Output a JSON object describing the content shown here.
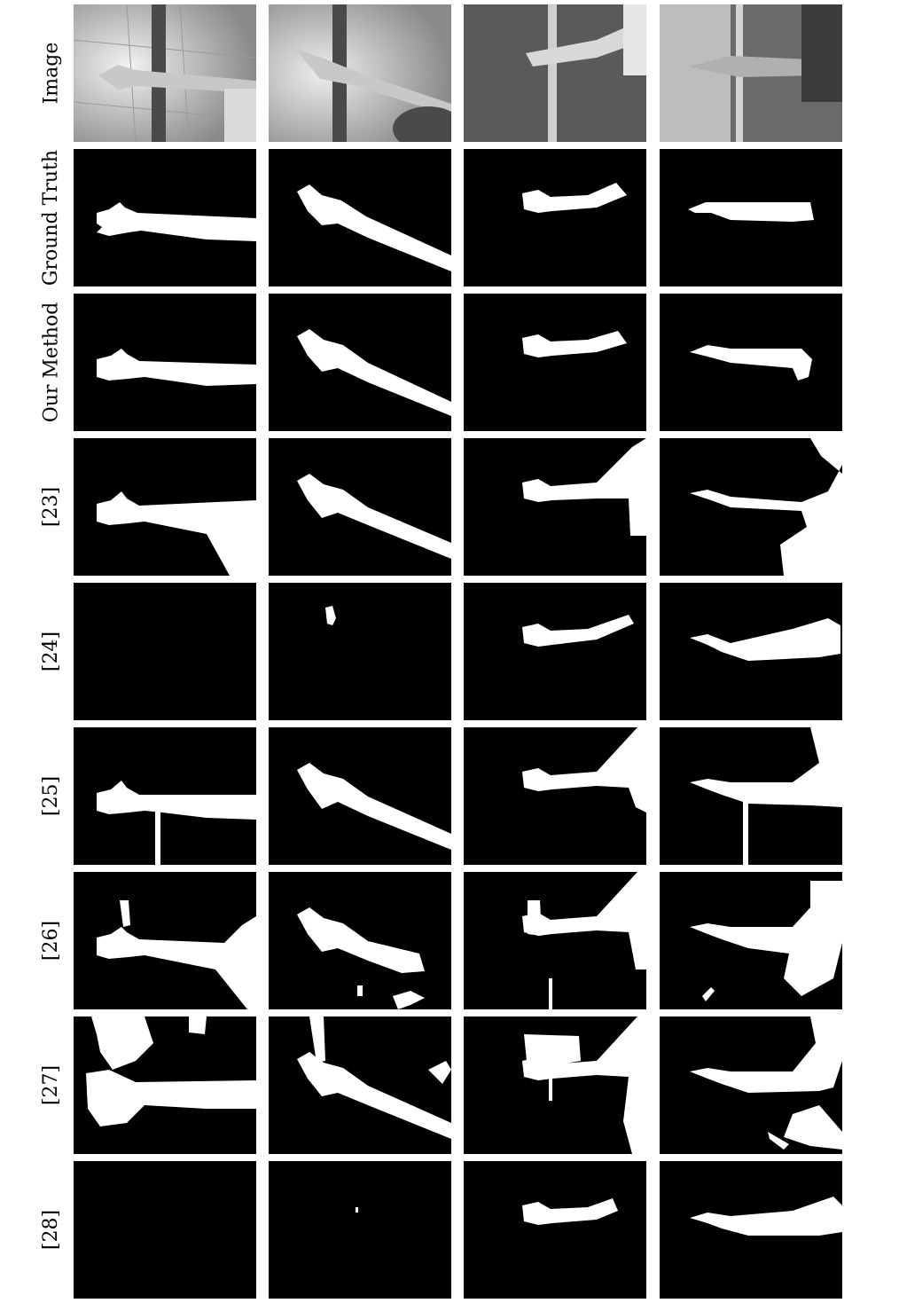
{
  "rows": [
    {
      "label": "Image"
    },
    {
      "label": "Ground Truth"
    },
    {
      "label": "Our Method"
    },
    {
      "label": "[23]"
    },
    {
      "label": "[24]"
    },
    {
      "label": "[25]"
    },
    {
      "label": "[26]"
    },
    {
      "label": "[27]"
    },
    {
      "label": "[28]"
    }
  ],
  "columns": 4
}
